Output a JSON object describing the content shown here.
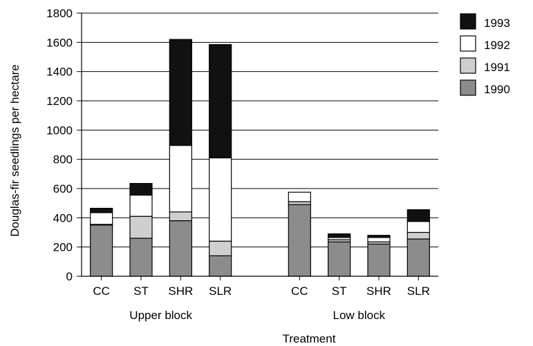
{
  "chart_data": {
    "type": "bar",
    "stacked": true,
    "title": "",
    "xlabel": "Treatment",
    "ylabel": "Douglas-fir seedlings per hectare",
    "ylim": [
      0,
      1800
    ],
    "yticks": [
      0,
      200,
      400,
      600,
      800,
      1000,
      1200,
      1400,
      1600,
      1800
    ],
    "grid": "horizontal",
    "legend_position": "top-right",
    "groups": [
      {
        "label": "Upper block",
        "categories": [
          "CC",
          "ST",
          "SHR",
          "SLR"
        ]
      },
      {
        "label": "Low block",
        "categories": [
          "CC",
          "ST",
          "SHR",
          "SLR"
        ]
      }
    ],
    "series": [
      {
        "name": "1990",
        "color": "#8c8c8c",
        "values": [
          350,
          260,
          380,
          140,
          490,
          235,
          220,
          255
        ]
      },
      {
        "name": "1991",
        "color": "#cfcfcf",
        "values": [
          5,
          150,
          60,
          100,
          20,
          15,
          15,
          45
        ]
      },
      {
        "name": "1992",
        "color": "#ffffff",
        "values": [
          80,
          145,
          455,
          570,
          65,
          15,
          30,
          75
        ]
      },
      {
        "name": "1993",
        "color": "#111111",
        "values": [
          30,
          80,
          725,
          775,
          0,
          25,
          15,
          80
        ]
      }
    ],
    "legend_order": [
      "1993",
      "1992",
      "1991",
      "1990"
    ]
  }
}
